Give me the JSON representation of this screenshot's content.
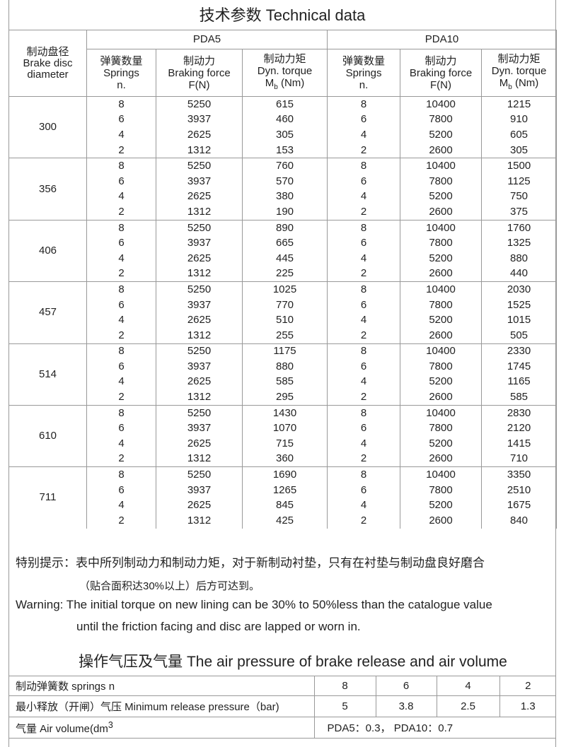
{
  "title": "技术参数   Technical data",
  "header": {
    "diameter": [
      "制动盘径",
      "Brake disc",
      "diameter"
    ],
    "models": [
      "PDA5",
      "PDA10"
    ],
    "springs": [
      "弹簧数量",
      "Springs",
      "n."
    ],
    "force": [
      "制动力",
      "Braking force",
      "F(N)"
    ],
    "torque": [
      "制动力矩",
      "Dyn. torque",
      "M",
      "b",
      "(Nm)"
    ]
  },
  "rows": [
    {
      "d": "300",
      "r": [
        [
          "8",
          "5250",
          "615",
          "8",
          "10400",
          "1215"
        ],
        [
          "6",
          "3937",
          "460",
          "6",
          "7800",
          "910"
        ],
        [
          "4",
          "2625",
          "305",
          "4",
          "5200",
          "605"
        ],
        [
          "2",
          "1312",
          "153",
          "2",
          "2600",
          "305"
        ]
      ]
    },
    {
      "d": "356",
      "r": [
        [
          "8",
          "5250",
          "760",
          "8",
          "10400",
          "1500"
        ],
        [
          "6",
          "3937",
          "570",
          "6",
          "7800",
          "1125"
        ],
        [
          "4",
          "2625",
          "380",
          "4",
          "5200",
          "750"
        ],
        [
          "2",
          "1312",
          "190",
          "2",
          "2600",
          "375"
        ]
      ]
    },
    {
      "d": "406",
      "r": [
        [
          "8",
          "5250",
          "890",
          "8",
          "10400",
          "1760"
        ],
        [
          "6",
          "3937",
          "665",
          "6",
          "7800",
          "1325"
        ],
        [
          "4",
          "2625",
          "445",
          "4",
          "5200",
          "880"
        ],
        [
          "2",
          "1312",
          "225",
          "2",
          "2600",
          "440"
        ]
      ]
    },
    {
      "d": "457",
      "r": [
        [
          "8",
          "5250",
          "1025",
          "8",
          "10400",
          "2030"
        ],
        [
          "6",
          "3937",
          "770",
          "6",
          "7800",
          "1525"
        ],
        [
          "4",
          "2625",
          "510",
          "4",
          "5200",
          "1015"
        ],
        [
          "2",
          "1312",
          "255",
          "2",
          "2600",
          "505"
        ]
      ]
    },
    {
      "d": "514",
      "r": [
        [
          "8",
          "5250",
          "1175",
          "8",
          "10400",
          "2330"
        ],
        [
          "6",
          "3937",
          "880",
          "6",
          "7800",
          "1745"
        ],
        [
          "4",
          "2625",
          "585",
          "4",
          "5200",
          "1165"
        ],
        [
          "2",
          "1312",
          "295",
          "2",
          "2600",
          "585"
        ]
      ]
    },
    {
      "d": "610",
      "r": [
        [
          "8",
          "5250",
          "1430",
          "8",
          "10400",
          "2830"
        ],
        [
          "6",
          "3937",
          "1070",
          "6",
          "7800",
          "2120"
        ],
        [
          "4",
          "2625",
          "715",
          "4",
          "5200",
          "1415"
        ],
        [
          "2",
          "1312",
          "360",
          "2",
          "2600",
          "710"
        ]
      ]
    },
    {
      "d": "711",
      "r": [
        [
          "8",
          "5250",
          "1690",
          "8",
          "10400",
          "3350"
        ],
        [
          "6",
          "3937",
          "1265",
          "6",
          "7800",
          "2510"
        ],
        [
          "4",
          "2625",
          "845",
          "4",
          "5200",
          "1675"
        ],
        [
          "2",
          "1312",
          "425",
          "2",
          "2600",
          "840"
        ]
      ]
    }
  ],
  "notes": {
    "cn1": "特别提示：表中所列制动力和制动力矩，对于新制动衬垫，只有在衬垫与制动盘良好磨合",
    "cn2": "（贴合面积达30%以上）后方可达到。",
    "en1": "Warning: The initial torque on new lining can be 30% to 50%less than the catalogue value",
    "en2": "until the friction facing and disc are lapped or worn in."
  },
  "air": {
    "title": "操作气压及气量 The air pressure of brake release and air volume",
    "springs_label": "制动弹簧数  springs  n",
    "springs": [
      "8",
      "6",
      "4",
      "2"
    ],
    "pressure_label": "最小释放（开闸）气压 Minimum release pressure（bar)",
    "pressure": [
      "5",
      "3.8",
      "2.5",
      "1.3"
    ],
    "volume_label": "气量  Air volume(dm",
    "volume_sup": "3",
    "volume": "PDA5：0.3，   PDA10：0.7"
  }
}
